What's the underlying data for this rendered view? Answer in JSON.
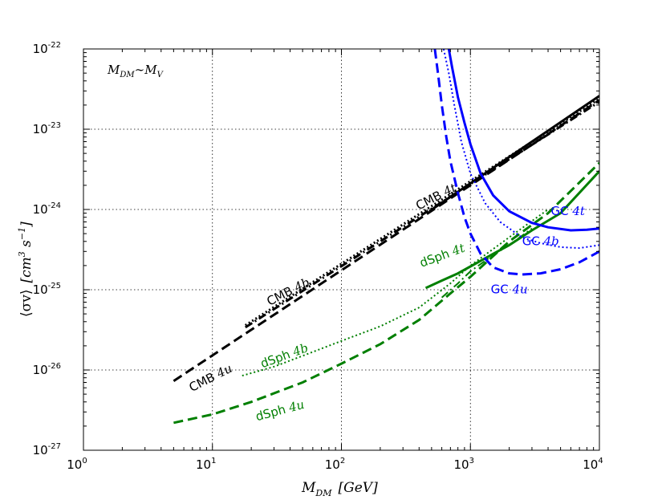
{
  "chart_data": {
    "type": "line",
    "title": "",
    "xlabel_main": "M",
    "xlabel_sub": "DM",
    "xlabel_unit": "[GeV]",
    "ylabel_main": "⟨σv⟩",
    "ylabel_unit": "[cm",
    "ylabel_unit_exp": "3",
    "ylabel_unit_s": " s",
    "ylabel_unit_s_exp": "−1",
    "ylabel_unit_close": "]",
    "x_scale": "log",
    "y_scale": "log",
    "xlim": [
      1,
      10000
    ],
    "ylim": [
      1e-27,
      1e-22
    ],
    "grid": true,
    "x_ticks": [
      {
        "base": "10",
        "exp": "0",
        "value": 1
      },
      {
        "base": "10",
        "exp": "1",
        "value": 10
      },
      {
        "base": "10",
        "exp": "2",
        "value": 100
      },
      {
        "base": "10",
        "exp": "3",
        "value": 1000
      },
      {
        "base": "10",
        "exp": "4",
        "value": 10000
      }
    ],
    "y_ticks": [
      {
        "base": "10",
        "exp": "-27",
        "value": 1e-27
      },
      {
        "base": "10",
        "exp": "-26",
        "value": 1e-26
      },
      {
        "base": "10",
        "exp": "-25",
        "value": 1e-25
      },
      {
        "base": "10",
        "exp": "-24",
        "value": 1e-24
      },
      {
        "base": "10",
        "exp": "-23",
        "value": 1e-23
      },
      {
        "base": "10",
        "exp": "-22",
        "value": 1e-22
      }
    ],
    "corner_annotation": {
      "main": "M",
      "sub1": "DM",
      "sim": "∼",
      "main2": "M",
      "sub2": "V"
    },
    "colors": {
      "black": "#000000",
      "green": "#007f00",
      "blue": "#0000ff"
    },
    "series": [
      {
        "name": "CMB 4t",
        "color": "#000000",
        "style": "solid",
        "width": 3,
        "x": [
          480,
          10000
        ],
        "y": [
          9.5e-25,
          2.6e-23
        ]
      },
      {
        "name": "CMB 4b",
        "color": "#000000",
        "style": "dotted",
        "width": 3,
        "x": [
          18,
          10000
        ],
        "y": [
          3.6e-26,
          2.4e-23
        ]
      },
      {
        "name": "CMB 4u",
        "color": "#000000",
        "style": "dashed",
        "width": 3,
        "x": [
          5,
          10000
        ],
        "y": [
          7.3e-27,
          2.3e-23
        ]
      },
      {
        "name": "CMB 4b dashdot",
        "color": "#000000",
        "style": "dashdot",
        "width": 3,
        "x": [
          18,
          10000
        ],
        "y": [
          3.4e-26,
          2.2e-23
        ]
      },
      {
        "name": "dSph 4t",
        "color": "#007f00",
        "style": "solid",
        "width": 3,
        "x": [
          450,
          600,
          800,
          1000,
          1500,
          2000,
          3000,
          5000,
          10000
        ],
        "y": [
          1.05e-25,
          1.3e-25,
          1.6e-25,
          1.95e-25,
          2.8e-25,
          3.6e-25,
          5.5e-25,
          9e-25,
          3e-24
        ]
      },
      {
        "name": "dSph 4b",
        "color": "#007f00",
        "style": "dotted",
        "width": 2,
        "x": [
          17,
          30,
          50,
          100,
          200,
          400,
          700,
          1000,
          2000,
          4000
        ],
        "y": [
          8.5e-27,
          1.1e-26,
          1.5e-26,
          2.3e-26,
          3.5e-26,
          6e-26,
          1.2e-25,
          2e-25,
          4.5e-25,
          1e-24
        ]
      },
      {
        "name": "dSph 4u",
        "color": "#007f00",
        "style": "dashed",
        "width": 3,
        "x": [
          5,
          10,
          20,
          50,
          100,
          200,
          400,
          700,
          1000,
          2000,
          4000,
          10000
        ],
        "y": [
          2.2e-27,
          2.8e-27,
          4e-27,
          7e-27,
          1.2e-26,
          2.1e-26,
          4.2e-26,
          9e-26,
          1.45e-25,
          4e-25,
          9e-25,
          3.8e-24
        ]
      },
      {
        "name": "dSph dashdot",
        "color": "#007f00",
        "style": "dashdot",
        "width": 2,
        "x": [
          600,
          800,
          1000,
          1500,
          2000,
          3000
        ],
        "y": [
          8e-26,
          1.2e-25,
          1.7e-25,
          2.7e-25,
          3.6e-25,
          5.8e-25
        ]
      },
      {
        "name": "GC 4t",
        "color": "#0000ff",
        "style": "solid",
        "width": 3,
        "x": [
          680,
          720,
          800,
          900,
          1000,
          1200,
          1500,
          2000,
          3000,
          4000,
          6000,
          8000,
          10000
        ],
        "y": [
          1e-22,
          6e-23,
          2.5e-23,
          1.2e-23,
          6.5e-24,
          2.8e-24,
          1.5e-24,
          9.5e-25,
          6.8e-25,
          6e-25,
          5.5e-25,
          5.6e-25,
          5.8e-25
        ]
      },
      {
        "name": "GC 4b",
        "color": "#0000ff",
        "style": "dotted",
        "width": 2,
        "x": [
          620,
          680,
          750,
          850,
          1000,
          1300,
          1700,
          2500,
          3500,
          5000,
          7000,
          10000
        ],
        "y": [
          1e-22,
          5e-23,
          2e-23,
          7e-24,
          2.8e-24,
          1.2e-24,
          7e-25,
          4.5e-25,
          3.8e-25,
          3.4e-25,
          3.3e-25,
          3.6e-25
        ]
      },
      {
        "name": "GC 4u",
        "color": "#0000ff",
        "style": "dashed",
        "width": 3,
        "x": [
          530,
          560,
          600,
          650,
          700,
          800,
          900,
          1000,
          1200,
          1500,
          2000,
          2500,
          3500,
          5000,
          7000,
          10000
        ],
        "y": [
          1e-22,
          5e-23,
          2e-23,
          8e-24,
          4e-24,
          1.6e-24,
          8e-25,
          5e-25,
          2.8e-25,
          1.9e-25,
          1.6e-25,
          1.55e-25,
          1.6e-25,
          1.8e-25,
          2.2e-25,
          3e-25
        ]
      }
    ],
    "labels": [
      {
        "text": "CMB",
        "it": "4t",
        "color": "#000000",
        "x": 560,
        "y": 1.3e-24,
        "rot": -27
      },
      {
        "text": "CMB",
        "it": "4b",
        "color": "#000000",
        "x": 40,
        "y": 8.5e-26,
        "rot": -27
      },
      {
        "text": "CMB",
        "it": "4u",
        "color": "#000000",
        "x": 10,
        "y": 7.2e-27,
        "rot": -27
      },
      {
        "text": "dSph",
        "it": "4t",
        "color": "#007f00",
        "x": 620,
        "y": 2.4e-25,
        "rot": -20
      },
      {
        "text": "dSph",
        "it": "4b",
        "color": "#007f00",
        "x": 37,
        "y": 1.35e-26,
        "rot": -20
      },
      {
        "text": "dSph",
        "it": "4u",
        "color": "#007f00",
        "x": 34,
        "y": 2.8e-27,
        "rot": -15
      },
      {
        "text": "GC",
        "it": "4t",
        "color": "#0000ff",
        "x": 5700,
        "y": 8.5e-25,
        "rot": 0
      },
      {
        "text": "GC",
        "it": "4b",
        "color": "#0000ff",
        "x": 3500,
        "y": 3.6e-25,
        "rot": 0
      },
      {
        "text": "GC",
        "it": "4u",
        "color": "#0000ff",
        "x": 2000,
        "y": 9e-26,
        "rot": 0
      }
    ]
  }
}
